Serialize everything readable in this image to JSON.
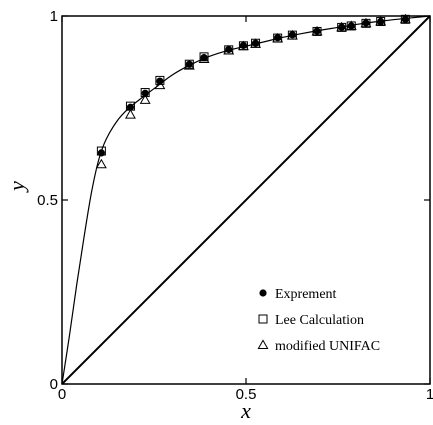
{
  "chart_data": {
    "type": "scatter",
    "xlabel": "x",
    "ylabel": "y",
    "xlim": [
      0,
      1
    ],
    "ylim": [
      0,
      1
    ],
    "xticks": [
      0,
      0.5,
      1
    ],
    "yticks": [
      0,
      0.5,
      1
    ],
    "xtick_labels": [
      "0",
      "0.5",
      "1"
    ],
    "ytick_labels": [
      "0",
      "0.5",
      "1"
    ],
    "grid": false,
    "legend_position": "bottom-right",
    "series": [
      {
        "name": "Exprement",
        "marker": "filled-circle",
        "x": [
          0.107,
          0.186,
          0.226,
          0.266,
          0.346,
          0.386,
          0.453,
          0.493,
          0.526,
          0.586,
          0.626,
          0.693,
          0.76,
          0.786,
          0.826,
          0.866,
          0.933
        ],
        "y": [
          0.628,
          0.752,
          0.79,
          0.823,
          0.869,
          0.887,
          0.909,
          0.92,
          0.926,
          0.941,
          0.949,
          0.959,
          0.97,
          0.973,
          0.981,
          0.985,
          0.991
        ]
      },
      {
        "name": "Lee Calculation",
        "marker": "open-square",
        "x": [
          0.107,
          0.186,
          0.226,
          0.266,
          0.346,
          0.386,
          0.453,
          0.493,
          0.526,
          0.586,
          0.626,
          0.693,
          0.76,
          0.786,
          0.826,
          0.866,
          0.933
        ],
        "y": [
          0.633,
          0.755,
          0.792,
          0.825,
          0.869,
          0.889,
          0.908,
          0.919,
          0.926,
          0.94,
          0.948,
          0.958,
          0.969,
          0.973,
          0.98,
          0.985,
          0.991
        ]
      },
      {
        "name": "modified UNIFAC",
        "marker": "open-triangle",
        "x": [
          0.107,
          0.186,
          0.226,
          0.266,
          0.346,
          0.386,
          0.453,
          0.493,
          0.526,
          0.586,
          0.626,
          0.693,
          0.76,
          0.786,
          0.826,
          0.866,
          0.933
        ],
        "y": [
          0.597,
          0.732,
          0.772,
          0.812,
          0.865,
          0.883,
          0.906,
          0.918,
          0.924,
          0.939,
          0.947,
          0.958,
          0.969,
          0.973,
          0.98,
          0.985,
          0.991
        ]
      }
    ],
    "lines": [
      {
        "role": "fitted-curve",
        "x": [
          0,
          0.02,
          0.04,
          0.06,
          0.08,
          0.1,
          0.12,
          0.15,
          0.18,
          0.22,
          0.26,
          0.3,
          0.35,
          0.4,
          0.45,
          0.5,
          0.55,
          0.6,
          0.65,
          0.7,
          0.75,
          0.8,
          0.85,
          0.9,
          0.95,
          1.0
        ],
        "y": [
          0,
          0.13,
          0.27,
          0.4,
          0.52,
          0.61,
          0.665,
          0.715,
          0.748,
          0.78,
          0.81,
          0.84,
          0.868,
          0.89,
          0.906,
          0.918,
          0.93,
          0.942,
          0.952,
          0.961,
          0.969,
          0.977,
          0.984,
          0.99,
          0.995,
          1.0
        ]
      },
      {
        "role": "diagonal",
        "x": [
          0,
          1
        ],
        "y": [
          0,
          1
        ]
      }
    ]
  }
}
